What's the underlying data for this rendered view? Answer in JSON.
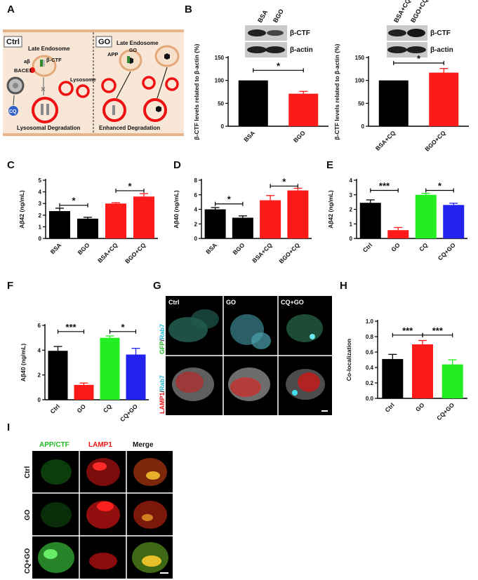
{
  "panels": {
    "A": "A",
    "B": "B",
    "C": "C",
    "D": "D",
    "E": "E",
    "F": "F",
    "G": "G",
    "H": "H",
    "I": "I"
  },
  "schematic": {
    "ctrl_label": "Ctrl",
    "go_label": "GO",
    "late_endosome": "Late Endosome",
    "abeta": "aβ",
    "beta_ctf": "β-CTF",
    "bace1": "BACE1",
    "lysosome": "Lysosome",
    "cq": "CQ",
    "lyso_degradation": "Lysosomal Degradation",
    "app": "APP",
    "go_small": "GO",
    "enhanced_degradation": "Enhanced  Degradation"
  },
  "blots": {
    "left": {
      "lanes": [
        "BSA",
        "BGO"
      ],
      "bands": [
        "β-CTF",
        "β-actin"
      ]
    },
    "right": {
      "lanes": [
        "BSA+CQ",
        "BGO+CQ"
      ],
      "bands": [
        "β-CTF",
        "β-actin"
      ]
    }
  },
  "colors": {
    "black": "#000000",
    "red": "#ff1a1a",
    "green": "#22ee22",
    "blue": "#2222ee"
  },
  "chart_data": [
    {
      "panel": "B-left",
      "type": "bar",
      "ylabel": "β-CTF levels related to β-actin (%)",
      "categories": [
        "BSA",
        "BGO"
      ],
      "values": [
        100,
        71
      ],
      "errors": [
        0,
        5
      ],
      "colors": [
        "#000000",
        "#ff1a1a"
      ],
      "ylim": [
        0,
        150
      ],
      "yticks": [
        0,
        50,
        100,
        150
      ],
      "sig": [
        {
          "from": 0,
          "to": 1,
          "label": "*",
          "y": 122
        }
      ]
    },
    {
      "panel": "B-right",
      "type": "bar",
      "ylabel": "β-CTF levels related to β-actin (%)",
      "categories": [
        "BSA+CQ",
        "BGO+CQ"
      ],
      "values": [
        100,
        117
      ],
      "errors": [
        0,
        9
      ],
      "colors": [
        "#000000",
        "#ff1a1a"
      ],
      "ylim": [
        0,
        150
      ],
      "yticks": [
        0,
        50,
        100,
        150
      ],
      "sig": [
        {
          "from": 0,
          "to": 1,
          "label": "*",
          "y": 138
        }
      ]
    },
    {
      "panel": "C",
      "type": "bar",
      "ylabel": "Aβ42 (ng/mL)",
      "categories": [
        "BSA",
        "BGO",
        "BSA+CQ",
        "BGO+CQ"
      ],
      "values": [
        2.35,
        1.7,
        3.0,
        3.6
      ],
      "errors": [
        0.25,
        0.12,
        0.08,
        0.25
      ],
      "colors": [
        "#000000",
        "#000000",
        "#ff1a1a",
        "#ff1a1a"
      ],
      "ylim": [
        0,
        5
      ],
      "yticks": [
        0,
        1,
        2,
        3,
        4,
        5
      ],
      "sig": [
        {
          "from": 0,
          "to": 1,
          "label": "*",
          "y": 2.85
        },
        {
          "from": 2,
          "to": 3,
          "label": "*",
          "y": 4.1
        }
      ]
    },
    {
      "panel": "D",
      "type": "bar",
      "ylabel": "Aβ40 (ng/mL)",
      "categories": [
        "BSA",
        "BGO",
        "BSA+CQ",
        "BGO+CQ"
      ],
      "values": [
        4.0,
        2.85,
        5.25,
        6.6
      ],
      "errors": [
        0.25,
        0.25,
        0.65,
        0.3
      ],
      "colors": [
        "#000000",
        "#000000",
        "#ff1a1a",
        "#ff1a1a"
      ],
      "ylim": [
        0,
        8
      ],
      "yticks": [
        0,
        2,
        4,
        6,
        8
      ],
      "sig": [
        {
          "from": 0,
          "to": 1,
          "label": "*",
          "y": 4.75
        },
        {
          "from": 2,
          "to": 3,
          "label": "*",
          "y": 7.2
        }
      ]
    },
    {
      "panel": "E",
      "type": "bar",
      "ylabel": "Aβ42 (ng/mL)",
      "categories": [
        "Ctrl",
        "GO",
        "CQ",
        "CQ+GO"
      ],
      "values": [
        2.45,
        0.57,
        3.0,
        2.3
      ],
      "errors": [
        0.2,
        0.18,
        0.1,
        0.12
      ],
      "colors": [
        "#000000",
        "#ff1a1a",
        "#22ee22",
        "#2222ee"
      ],
      "ylim": [
        0,
        4
      ],
      "yticks": [
        0,
        1,
        2,
        3,
        4
      ],
      "sig": [
        {
          "from": 0,
          "to": 1,
          "label": "***",
          "y": 3.3
        },
        {
          "from": 2,
          "to": 3,
          "label": "*",
          "y": 3.3
        }
      ]
    },
    {
      "panel": "F",
      "type": "bar",
      "ylabel": "Aβ40 (ng/mL)",
      "categories": [
        "Ctrl",
        "GO",
        "CQ",
        "CQ+GO"
      ],
      "values": [
        3.95,
        1.2,
        5.0,
        3.65
      ],
      "errors": [
        0.35,
        0.15,
        0.15,
        0.5
      ],
      "colors": [
        "#000000",
        "#ff1a1a",
        "#22ee22",
        "#2222ee"
      ],
      "ylim": [
        0,
        6
      ],
      "yticks": [
        0,
        2,
        4,
        6
      ],
      "sig": [
        {
          "from": 0,
          "to": 1,
          "label": "***",
          "y": 5.5
        },
        {
          "from": 2,
          "to": 3,
          "label": "*",
          "y": 5.5
        }
      ]
    },
    {
      "panel": "H",
      "type": "bar",
      "ylabel": "Co-localization",
      "categories": [
        "Ctrl",
        "GO",
        "CQ+GO"
      ],
      "values": [
        0.51,
        0.7,
        0.44
      ],
      "errors": [
        0.06,
        0.05,
        0.06
      ],
      "colors": [
        "#000000",
        "#ff1a1a",
        "#22ee22"
      ],
      "ylim": [
        0,
        1.0
      ],
      "yticks": [
        0,
        0.2,
        0.4,
        0.6,
        0.8,
        1.0
      ],
      "sig": [
        {
          "from": 0,
          "to": 1,
          "label": "***",
          "y": 0.82
        },
        {
          "from": 1,
          "to": 2,
          "label": "***",
          "y": 0.82
        }
      ]
    }
  ],
  "microscopy_g": {
    "cols": [
      "Ctrl",
      "GO",
      "CQ+GO"
    ],
    "row1_label": {
      "a": "GFP",
      "sep": "/",
      "b": "Rab7"
    },
    "row2_label": {
      "a": "LAMP1",
      "sep": "/",
      "b": "Rab7"
    }
  },
  "microscopy_i": {
    "cols": [
      "APP/CTF",
      "LAMP1",
      "Merge"
    ],
    "rows": [
      "Ctrl",
      "GO",
      "CQ+GO"
    ]
  }
}
